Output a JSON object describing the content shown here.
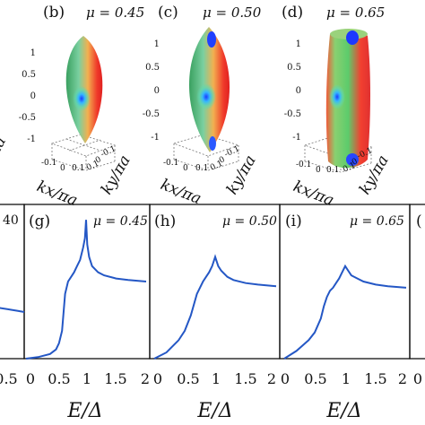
{
  "top_panels": [
    {
      "tag": "(b)",
      "mu_text": "μ = 0.45"
    },
    {
      "tag": "(c)",
      "mu_text": "μ = 0.50"
    },
    {
      "tag": "(d)",
      "mu_text": "μ = 0.65"
    }
  ],
  "surface_axis": {
    "z_ticks": [
      "1",
      "0.5",
      "0",
      "-0.5",
      "-1"
    ],
    "x_ticks": [
      "-0.1",
      "0",
      "0.1"
    ],
    "y_ticks": [
      "-0.1",
      "0",
      "0.1"
    ],
    "kx_label": "kx/πa",
    "ky_label": "ky/πa",
    "left_cut_label": "/πa"
  },
  "bottom_panels": [
    {
      "tag": "(g)",
      "mu_text": "μ = 0.45"
    },
    {
      "tag": "(h)",
      "mu_text": "μ = 0.50"
    },
    {
      "tag": "(i)",
      "mu_text": "μ = 0.65"
    }
  ],
  "partial_left_tick": "40",
  "xlabels": [
    "E/Δ",
    "E/Δ",
    "E/Δ"
  ],
  "chart_data": {
    "type": "line",
    "xlabel": "E/Δ",
    "xticks": [
      "0",
      "0.5",
      "1",
      "1.5",
      "2"
    ],
    "xlim": [
      0,
      2
    ],
    "series": [
      {
        "panel": "(g)",
        "x": [
          0,
          0.2,
          0.4,
          0.5,
          0.55,
          0.6,
          0.65,
          0.7,
          0.75,
          0.8,
          0.85,
          0.9,
          0.95,
          0.98,
          1.0,
          1.02,
          1.05,
          1.1,
          1.2,
          1.3,
          1.5,
          1.7,
          2.0
        ],
        "y": [
          0,
          0.01,
          0.03,
          0.06,
          0.1,
          0.18,
          0.42,
          0.5,
          0.53,
          0.56,
          0.6,
          0.64,
          0.72,
          0.78,
          0.9,
          0.74,
          0.66,
          0.6,
          0.56,
          0.54,
          0.52,
          0.51,
          0.5
        ]
      },
      {
        "panel": "(h)",
        "x": [
          0,
          0.2,
          0.4,
          0.5,
          0.6,
          0.7,
          0.75,
          0.8,
          0.85,
          0.9,
          0.95,
          1.0,
          1.05,
          1.1,
          1.2,
          1.3,
          1.5,
          1.7,
          2.0
        ],
        "y": [
          0,
          0.04,
          0.12,
          0.18,
          0.28,
          0.42,
          0.46,
          0.5,
          0.53,
          0.56,
          0.6,
          0.66,
          0.6,
          0.57,
          0.53,
          0.51,
          0.49,
          0.48,
          0.47
        ]
      },
      {
        "panel": "(i)",
        "x": [
          0,
          0.2,
          0.4,
          0.5,
          0.6,
          0.65,
          0.7,
          0.75,
          0.8,
          0.85,
          0.9,
          0.95,
          1.0,
          1.05,
          1.1,
          1.2,
          1.3,
          1.5,
          1.7,
          2.0
        ],
        "y": [
          0,
          0.05,
          0.12,
          0.17,
          0.26,
          0.34,
          0.4,
          0.44,
          0.46,
          0.49,
          0.52,
          0.56,
          0.6,
          0.57,
          0.54,
          0.52,
          0.5,
          0.48,
          0.47,
          0.46
        ]
      }
    ]
  }
}
